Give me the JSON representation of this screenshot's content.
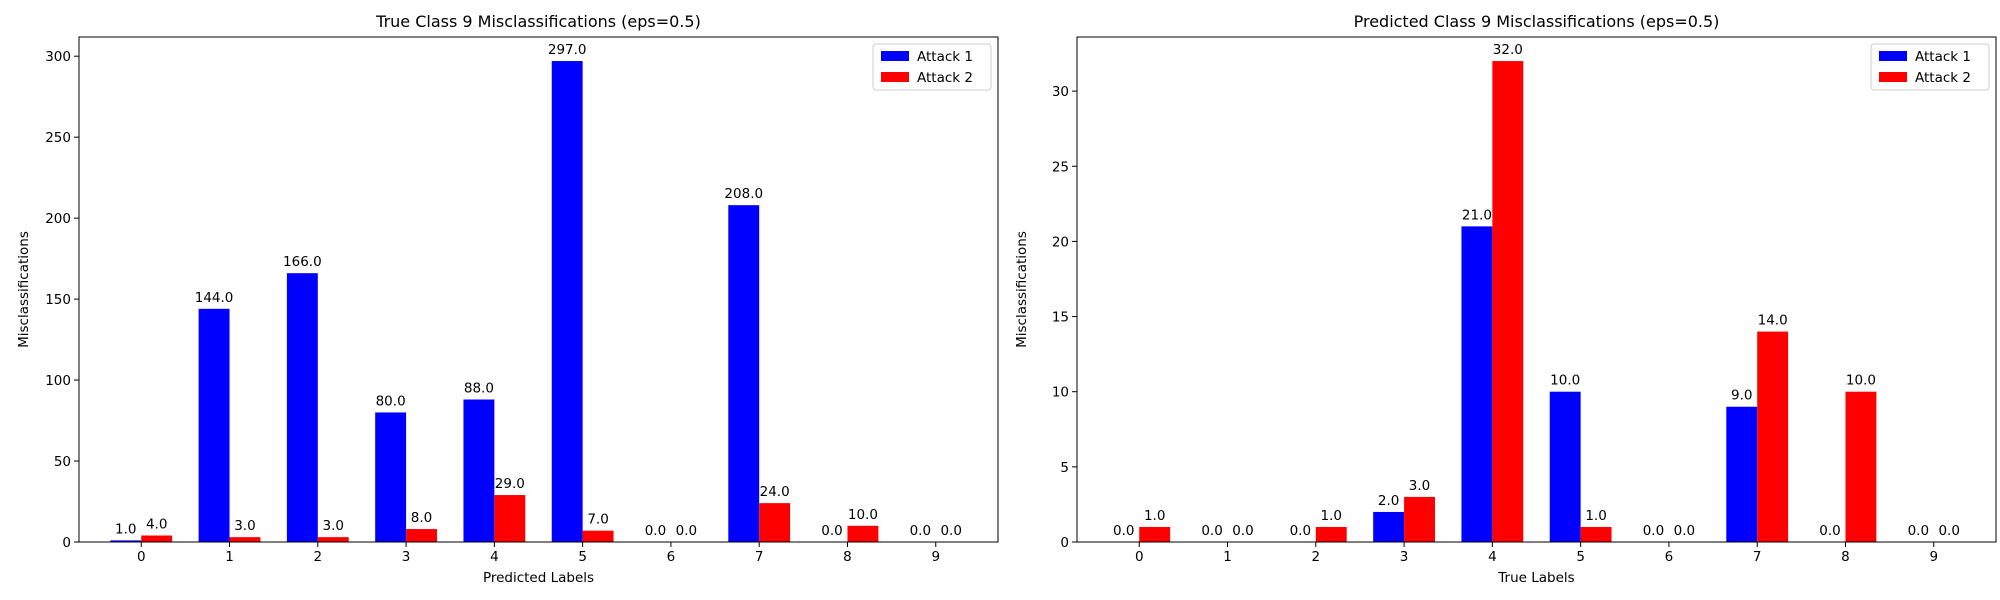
{
  "chart_data": [
    {
      "type": "bar",
      "title": "True Class 9 Misclassifications (eps=0.5)",
      "xlabel": "Predicted Labels",
      "ylabel": "Misclassifications",
      "categories": [
        "0",
        "1",
        "2",
        "3",
        "4",
        "5",
        "6",
        "7",
        "8",
        "9"
      ],
      "series": [
        {
          "name": "Attack 1",
          "color": "#0000ff",
          "values": [
            1,
            144,
            166,
            80,
            88,
            297,
            0,
            208,
            0,
            0
          ],
          "labels": [
            "1.0",
            "144.0",
            "166.0",
            "80.0",
            "88.0",
            "297.0",
            "0.0",
            "208.0",
            "0.0",
            "0.0"
          ]
        },
        {
          "name": "Attack 2",
          "color": "#ff0000",
          "values": [
            4,
            3,
            3,
            8,
            29,
            7,
            0,
            24,
            10,
            0
          ],
          "labels": [
            "4.0",
            "3.0",
            "3.0",
            "8.0",
            "29.0",
            "7.0",
            "0.0",
            "24.0",
            "10.0",
            "0.0"
          ]
        }
      ],
      "ylim": [
        0,
        311.85
      ],
      "yticks": [
        0,
        50,
        100,
        150,
        200,
        250,
        300
      ],
      "ytick_labels": [
        "0",
        "50",
        "100",
        "150",
        "200",
        "250",
        "300"
      ],
      "legend_position": "top-right",
      "grid": false
    },
    {
      "type": "bar",
      "title": "Predicted Class 9 Misclassifications (eps=0.5)",
      "xlabel": "True Labels",
      "ylabel": "Misclassifications",
      "categories": [
        "0",
        "1",
        "2",
        "3",
        "4",
        "5",
        "6",
        "7",
        "8",
        "9"
      ],
      "series": [
        {
          "name": "Attack 1",
          "color": "#0000ff",
          "values": [
            0,
            0,
            0,
            2,
            21,
            10,
            0,
            9,
            0,
            0
          ],
          "labels": [
            "0.0",
            "0.0",
            "0.0",
            "2.0",
            "21.0",
            "10.0",
            "0.0",
            "9.0",
            "0.0",
            "0.0"
          ]
        },
        {
          "name": "Attack 2",
          "color": "#ff0000",
          "values": [
            1,
            0,
            1,
            3,
            32,
            1,
            0,
            14,
            10,
            0
          ],
          "labels": [
            "1.0",
            "0.0",
            "1.0",
            "3.0",
            "32.0",
            "1.0",
            "0.0",
            "14.0",
            "10.0",
            "0.0"
          ]
        }
      ],
      "ylim": [
        0,
        33.6
      ],
      "yticks": [
        0,
        5,
        10,
        15,
        20,
        25,
        30
      ],
      "ytick_labels": [
        "0",
        "5",
        "10",
        "15",
        "20",
        "25",
        "30"
      ],
      "legend_position": "top-right",
      "grid": false
    }
  ]
}
